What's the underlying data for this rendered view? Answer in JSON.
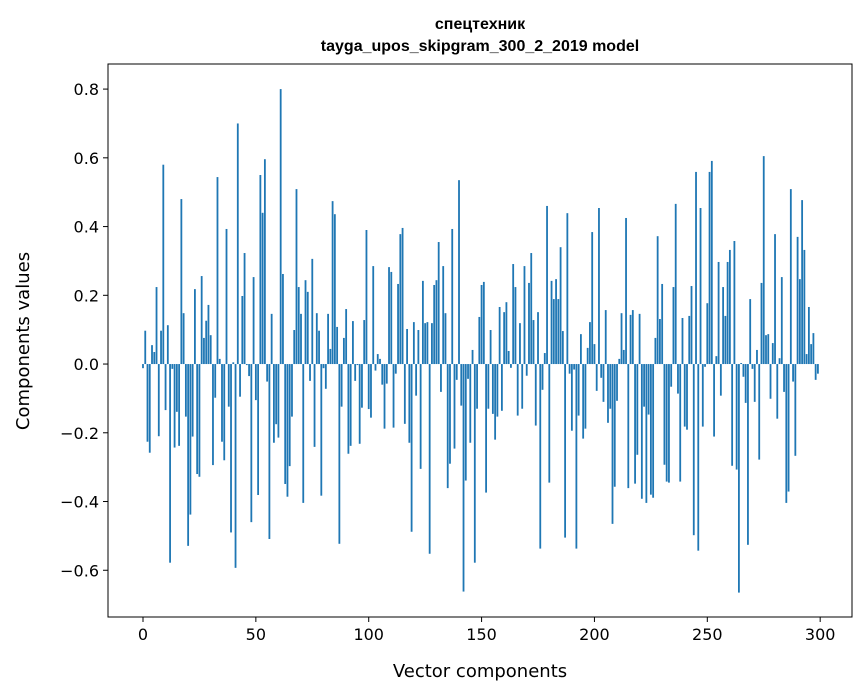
{
  "chart_data": {
    "type": "bar",
    "title_line1": "спецтехник",
    "title_line2": "tayga_upos_skipgram_300_2_2019 model",
    "xlabel": "Vector components",
    "ylabel": "Components values",
    "xlim": [
      -15.5,
      314.1
    ],
    "ylim": [
      -0.736,
      0.873
    ],
    "grid": false,
    "bar_color": "#1f77b4",
    "x_ticks": [
      {
        "value": 0,
        "label": "0"
      },
      {
        "value": 50,
        "label": "50"
      },
      {
        "value": 100,
        "label": "100"
      },
      {
        "value": 150,
        "label": "150"
      },
      {
        "value": 200,
        "label": "200"
      },
      {
        "value": 250,
        "label": "250"
      },
      {
        "value": 300,
        "label": "300"
      }
    ],
    "y_ticks": [
      {
        "value": -0.6,
        "label": "−0.6"
      },
      {
        "value": -0.4,
        "label": "−0.4"
      },
      {
        "value": -0.2,
        "label": "−0.2"
      },
      {
        "value": 0.0,
        "label": "0.0"
      },
      {
        "value": 0.2,
        "label": "0.2"
      },
      {
        "value": 0.4,
        "label": "0.4"
      },
      {
        "value": 0.6,
        "label": "0.6"
      },
      {
        "value": 0.8,
        "label": "0.8"
      }
    ],
    "values": [
      -0.012,
      0.097,
      -0.226,
      -0.258,
      0.055,
      0.035,
      0.224,
      -0.21,
      0.097,
      0.58,
      -0.134,
      0.113,
      -0.578,
      -0.014,
      -0.243,
      -0.139,
      -0.238,
      0.48,
      0.148,
      -0.153,
      -0.529,
      -0.438,
      -0.211,
      0.218,
      -0.32,
      -0.328,
      0.256,
      0.076,
      0.126,
      0.172,
      0.084,
      -0.294,
      -0.098,
      0.544,
      0.015,
      -0.226,
      -0.28,
      0.393,
      -0.124,
      -0.49,
      0.005,
      -0.593,
      0.7,
      -0.095,
      0.198,
      0.323,
      -0.003,
      -0.035,
      -0.46,
      0.253,
      -0.105,
      -0.381,
      0.55,
      0.44,
      0.596,
      -0.051,
      -0.509,
      0.146,
      -0.229,
      -0.175,
      -0.214,
      0.8,
      0.262,
      -0.349,
      -0.386,
      -0.297,
      -0.153,
      0.099,
      0.509,
      0.224,
      0.146,
      -0.404,
      0.244,
      0.21,
      -0.049,
      0.306,
      -0.241,
      0.148,
      0.097,
      -0.383,
      -0.012,
      -0.072,
      0.146,
      0.044,
      0.474,
      0.436,
      0.108,
      -0.523,
      -0.124,
      0.076,
      0.16,
      -0.261,
      -0.238,
      0.125,
      -0.049,
      -0.003,
      -0.232,
      -0.127,
      0.128,
      0.39,
      -0.131,
      -0.156,
      0.285,
      -0.019,
      0.029,
      0.015,
      -0.06,
      -0.188,
      -0.057,
      0.282,
      0.268,
      -0.185,
      -0.028,
      0.233,
      0.378,
      0.396,
      -0.174,
      0.102,
      -0.229,
      -0.488,
      0.122,
      -0.092,
      0.099,
      -0.305,
      0.242,
      0.119,
      0.122,
      -0.552,
      0.119,
      0.23,
      0.244,
      0.355,
      -0.081,
      0.285,
      0.148,
      -0.361,
      -0.29,
      0.393,
      -0.246,
      -0.046,
      0.535,
      -0.121,
      -0.662,
      -0.339,
      -0.043,
      -0.229,
      0.041,
      -0.578,
      -0.13,
      0.137,
      0.23,
      0.239,
      -0.374,
      -0.13,
      0.099,
      -0.145,
      -0.22,
      -0.153,
      0.166,
      -0.136,
      0.151,
      0.18,
      0.038,
      -0.011,
      0.291,
      0.224,
      -0.15,
      0.119,
      -0.13,
      0.285,
      -0.034,
      0.236,
      0.323,
      0.128,
      -0.179,
      0.151,
      -0.537,
      -0.075,
      0.032,
      0.46,
      -0.345,
      0.242,
      0.189,
      0.247,
      0.189,
      0.34,
      0.096,
      -0.505,
      0.439,
      -0.028,
      -0.194,
      -0.016,
      -0.537,
      -0.15,
      0.087,
      -0.217,
      -0.188,
      0.047,
      0.122,
      0.384,
      0.058,
      -0.078,
      0.454,
      -0.04,
      -0.11,
      0.157,
      -0.171,
      -0.13,
      -0.465,
      -0.357,
      -0.107,
      0.015,
      0.148,
      0.041,
      0.425,
      -0.361,
      0.143,
      0.157,
      -0.348,
      -0.264,
      0.146,
      -0.392,
      -0.124,
      -0.404,
      -0.147,
      -0.38,
      -0.389,
      0.076,
      0.372,
      0.131,
      0.233,
      -0.293,
      -0.342,
      -0.345,
      -0.066,
      0.224,
      0.466,
      -0.086,
      -0.342,
      0.134,
      -0.182,
      -0.191,
      0.14,
      0.227,
      -0.498,
      0.559,
      -0.543,
      0.454,
      -0.182,
      -0.008,
      0.177,
      0.559,
      0.591,
      -0.211,
      0.023,
      0.297,
      -0.092,
      0.224,
      0.14,
      0.297,
      0.332,
      -0.296,
      0.358,
      -0.307,
      -0.665,
      0.003,
      -0.037,
      -0.113,
      -0.526,
      0.189,
      -0.014,
      -0.11,
      0.041,
      -0.278,
      0.236,
      0.605,
      0.084,
      0.087,
      -0.101,
      0.061,
      0.378,
      -0.159,
      0.017,
      0.253,
      -0.081,
      -0.404,
      -0.371,
      0.509,
      -0.051,
      -0.267,
      0.37,
      0.247,
      0.477,
      0.332,
      0.029,
      0.166,
      0.058,
      0.09,
      -0.046,
      -0.028
    ]
  }
}
